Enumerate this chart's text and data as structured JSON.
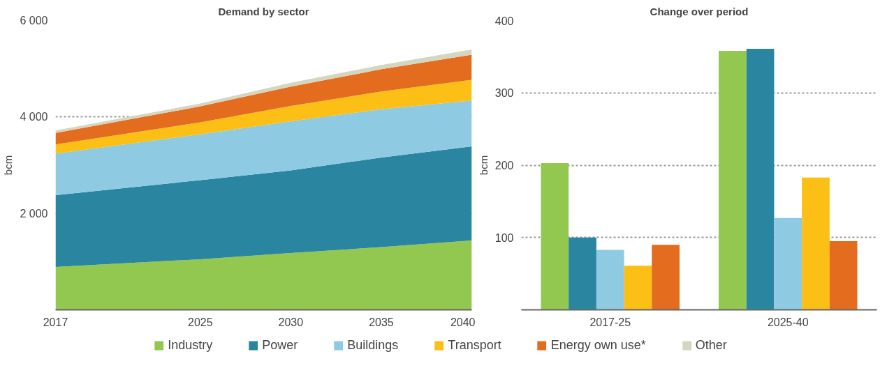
{
  "chart_data": [
    {
      "type": "area",
      "title": "Demand by sector",
      "ylabel": "bcm",
      "stacked": true,
      "legend": "bottom",
      "grid": "y",
      "x": [
        2017,
        2025,
        2030,
        2035,
        2040
      ],
      "xlim": [
        2017,
        2040
      ],
      "xticks": [
        2017,
        2025,
        2030,
        2035,
        2040
      ],
      "ylim": [
        0,
        6000
      ],
      "yticks": [
        {
          "value": 2000,
          "label": "2 000"
        },
        {
          "value": 4000,
          "label": "4 000"
        },
        {
          "value": 6000,
          "label": "6 000"
        }
      ],
      "series": [
        {
          "name": "Industry",
          "color": "#92c84f",
          "values": [
            890,
            1050,
            1180,
            1300,
            1440
          ]
        },
        {
          "name": "Power",
          "color": "#2a85a0",
          "values": [
            1490,
            1640,
            1710,
            1860,
            1950
          ]
        },
        {
          "name": "Buildings",
          "color": "#8fcae3",
          "values": [
            860,
            950,
            1020,
            1000,
            950
          ]
        },
        {
          "name": "Transport",
          "color": "#fbbf16",
          "values": [
            190,
            250,
            320,
            370,
            430
          ]
        },
        {
          "name": "Energy own use*",
          "color": "#e46c1f",
          "values": [
            240,
            330,
            400,
            460,
            520
          ]
        },
        {
          "name": "Other",
          "color": "#d4d6c0",
          "values": [
            50,
            60,
            80,
            90,
            110
          ]
        }
      ]
    },
    {
      "type": "bar",
      "title": "Change over period",
      "ylabel": "bcm",
      "grid": "y",
      "categories": [
        "2017-25",
        "2025-40"
      ],
      "ylim": [
        0,
        400
      ],
      "yticks": [
        100,
        200,
        300,
        400
      ],
      "series": [
        {
          "color": "#92c84f",
          "values": [
            203,
            358
          ]
        },
        {
          "color": "#2a85a0",
          "values": [
            100,
            361
          ]
        },
        {
          "color": "#8fcae3",
          "values": [
            83,
            127
          ]
        },
        {
          "color": "#fbbf16",
          "values": [
            61,
            183
          ]
        },
        {
          "color": "#e46c1f",
          "values": [
            90,
            95
          ]
        }
      ]
    }
  ]
}
